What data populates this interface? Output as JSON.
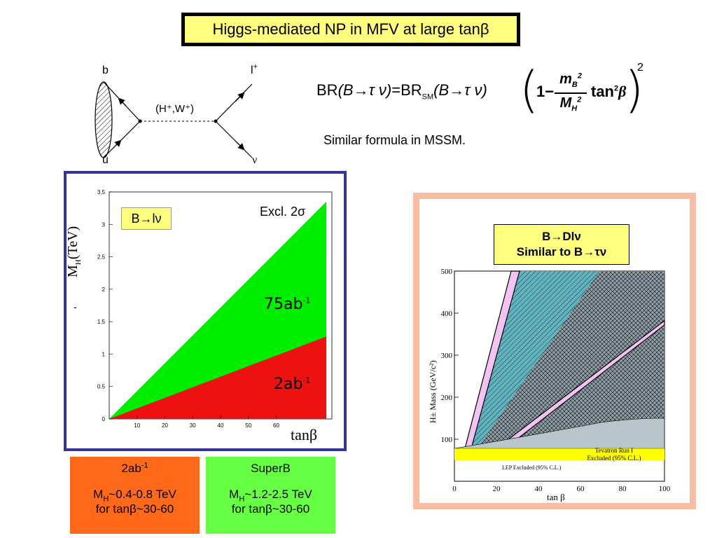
{
  "title": {
    "text": "Higgs-mediated NP in MFV at large tanβ"
  },
  "feynman": {
    "label_b": "b",
    "label_u": "u",
    "label_l": "l",
    "label_l_sup": "+",
    "label_nu": "ν",
    "mediator": "(H⁺,W⁺)"
  },
  "formula": {
    "br_lhs": "BR",
    "br_rhs": "BR",
    "sm_sub": "SM",
    "arg": "(B→τ ν)",
    "one": "1",
    "minus": "−",
    "num": "m",
    "num_sub": "B",
    "num_sup": "2",
    "den": "M",
    "den_sub": "H",
    "den_sup": "2",
    "tan": "tan",
    "tan_sup": "2",
    "beta": "β",
    "power": "2"
  },
  "caption": "Similar formula in MSSM.",
  "left_plot": {
    "tag": "B→lν",
    "excl": "Excl. 2σ",
    "label_75": "75ab",
    "label_75_sup": "-1",
    "label_2": "2ab",
    "label_2_sup": "-1",
    "ylabel_m": "M",
    "ylabel_sub": "H",
    "ylabel_unit": "(TeV)",
    "xlabel": "tanβ",
    "dash": "-",
    "colors": {
      "green": "#00ee00",
      "red": "#ee1111",
      "frame": "#333399"
    }
  },
  "right_plot": {
    "tag_line1": "B→Dlν",
    "tag_line2": "Similar to B→τν",
    "ylabel": "H± Mass (GeV/c²)",
    "xlabel": "tan β",
    "tevatron_line1": "Tevatron Run I",
    "tevatron_line2": "Excluded (95% C.L.)",
    "lep": "LEP Excluded (95% C.L.)",
    "colors": {
      "teal": "#62b3c0",
      "grey": "#9aaab0",
      "yellow": "#ffff00",
      "pink": "#f3c4f3",
      "frame": "#f9bda3"
    }
  },
  "box_2ab": {
    "head": "2ab",
    "head_sup": "-1",
    "line1_pre": "M",
    "line1_sub": "H",
    "line1_post": "~0.4-0.8 TeV",
    "line2": "for tanβ~30-60",
    "color": "#ff6a1a"
  },
  "box_superb": {
    "head": "SuperB",
    "line1_pre": "M",
    "line1_sub": "H",
    "line1_post": "~1.2-2.5 TeV",
    "line2": "for tanβ~30-60",
    "color": "#66ff44"
  },
  "chart_data": [
    {
      "type": "area",
      "title": "B→lν",
      "xlabel": "tanβ",
      "ylabel": "M_H (TeV)",
      "xlim": [
        0,
        80
      ],
      "ylim": [
        0,
        3.5
      ],
      "x_ticks": [
        10,
        20,
        30,
        40,
        50,
        60
      ],
      "y_ticks": [
        0,
        0.5,
        1,
        1.5,
        2,
        2.5,
        3,
        3.5
      ],
      "series": [
        {
          "name": "75ab-1",
          "x": [
            0,
            78
          ],
          "values": [
            0,
            3.35
          ]
        },
        {
          "name": "2ab-1",
          "x": [
            0,
            78
          ],
          "values": [
            0,
            1.27
          ]
        }
      ]
    },
    {
      "type": "area",
      "title": "B→Dlν Similar to B→τν",
      "xlabel": "tan β",
      "ylabel": "H± Mass (GeV/c²)",
      "xlim": [
        0,
        100
      ],
      "ylim": [
        0,
        500
      ],
      "x_ticks": [
        0,
        20,
        40,
        60,
        80,
        100
      ],
      "y_ticks": [
        100,
        200,
        300,
        400,
        500
      ],
      "series": [
        {
          "name": "LEP Excluded (95% C.L.)",
          "x": [
            0,
            100
          ],
          "values": [
            78,
            78
          ]
        },
        {
          "name": "Tevatron Run I Excluded (95% C.L.)",
          "x": [
            0,
            40,
            70,
            100
          ],
          "values": [
            78,
            110,
            140,
            150
          ]
        }
      ]
    }
  ]
}
